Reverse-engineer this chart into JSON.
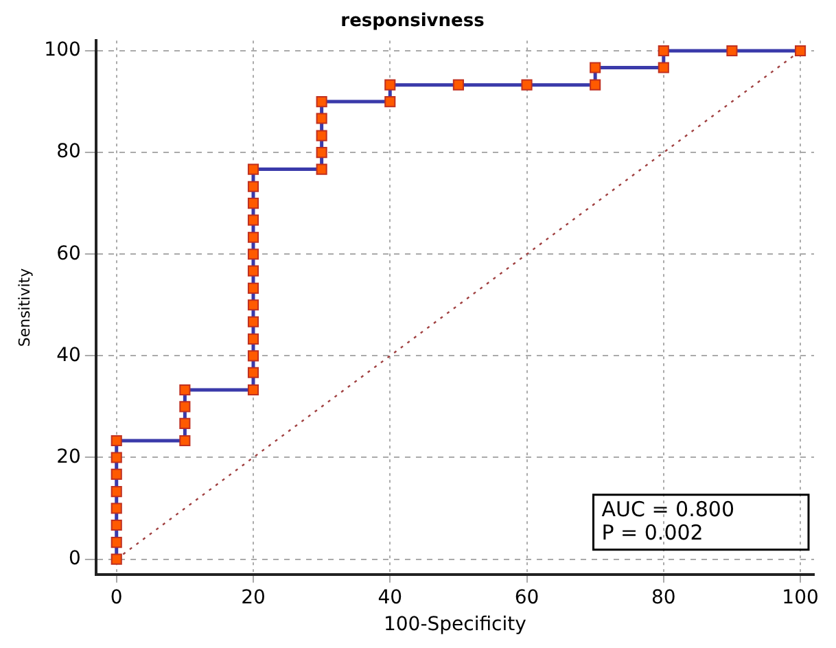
{
  "chart_data": {
    "type": "line",
    "title": "responsivness",
    "xlabel": "100-Specificity",
    "ylabel": "Sensitivity",
    "xlim": [
      -3,
      102
    ],
    "ylim": [
      -3,
      102
    ],
    "xticks": [
      0,
      20,
      40,
      60,
      80,
      100
    ],
    "yticks": [
      0,
      20,
      40,
      60,
      80,
      100
    ],
    "grid": true,
    "legend": false,
    "marker": "square",
    "series": [
      {
        "color": "#3a3aaa",
        "x": [
          0,
          0,
          0,
          0,
          0,
          0,
          0,
          0,
          10,
          10,
          10,
          10,
          20,
          20,
          20,
          20,
          20,
          20,
          20,
          20,
          20,
          20,
          20,
          20,
          20,
          20,
          30,
          30,
          30,
          30,
          30,
          40,
          40,
          50,
          60,
          70,
          70,
          80,
          80,
          90,
          100
        ],
        "values": [
          0,
          3.3,
          6.7,
          10,
          13.3,
          16.7,
          20,
          23.3,
          23.3,
          26.7,
          30,
          33.3,
          33.3,
          36.7,
          40,
          43.3,
          46.7,
          50,
          53.3,
          56.7,
          60,
          63.3,
          66.7,
          70,
          73.3,
          76.7,
          76.7,
          80,
          83.3,
          86.7,
          90,
          90,
          93.3,
          93.3,
          93.3,
          93.3,
          96.7,
          96.7,
          100,
          100,
          100
        ]
      },
      {
        "color": "#a04040",
        "marker": "none",
        "line_style": "dotted",
        "x": [
          0,
          100
        ],
        "values": [
          0,
          100
        ]
      }
    ],
    "annotations": [
      "AUC = 0.800",
      "P = 0.002"
    ]
  }
}
